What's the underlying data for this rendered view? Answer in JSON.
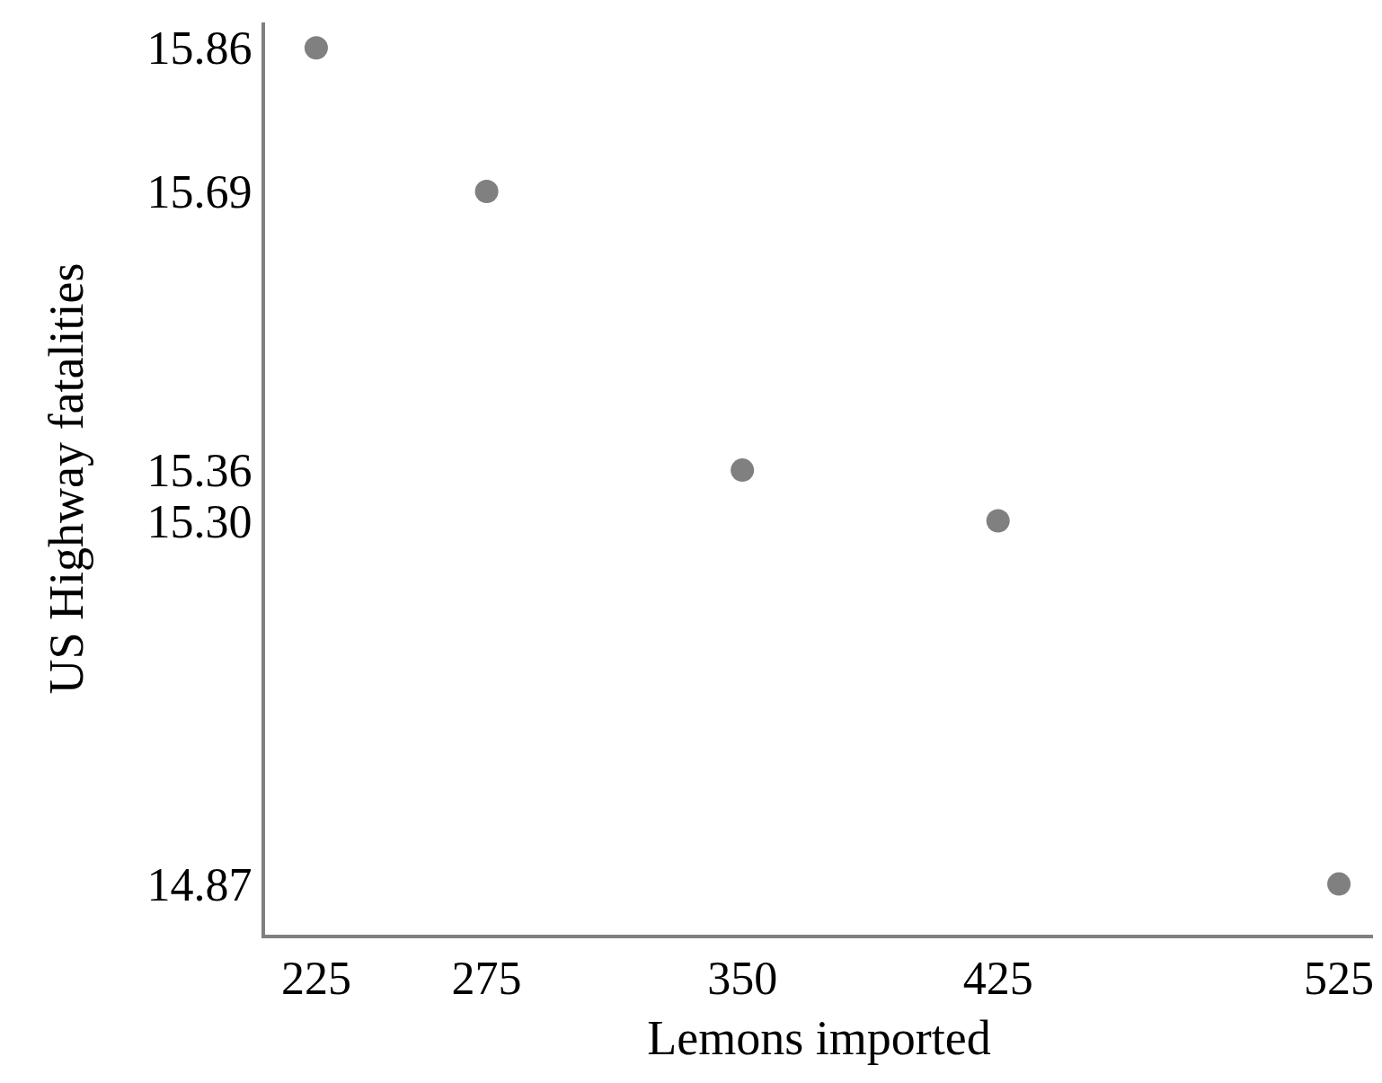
{
  "chart_data": {
    "type": "scatter",
    "xlabel": "Lemons imported",
    "ylabel": "US Highway fatalities",
    "x": [
      225,
      275,
      350,
      425,
      525
    ],
    "series": [
      {
        "color": "#808080",
        "values": [
          15.86,
          15.69,
          15.36,
          15.3,
          14.87
        ]
      }
    ],
    "xlim": [
      210,
      535
    ],
    "xticks": [
      225,
      275,
      350,
      425,
      525
    ],
    "ylim": [
      14.81,
      15.89
    ],
    "yticks": [
      14.87,
      {
        "value": 15.3,
        "label": "15.30"
      },
      15.36,
      15.69,
      15.86
    ],
    "grid": false,
    "marker": "circle"
  }
}
